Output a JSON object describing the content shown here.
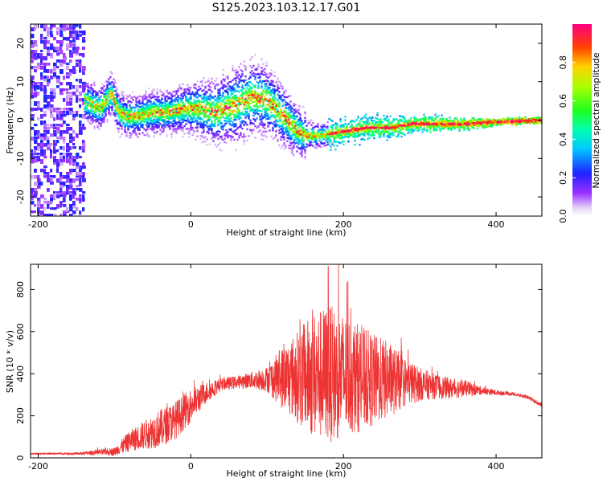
{
  "title": "S125.2023.103.12.17.G01",
  "chart_data": [
    {
      "type": "heatmap",
      "xlabel": "Height of straight line (km)",
      "ylabel": "Frequency (Hz)",
      "xlim": [
        -210,
        460
      ],
      "ylim": [
        -25,
        25
      ],
      "xticks": [
        -200,
        0,
        200,
        400
      ],
      "yticks": [
        -20,
        -10,
        0,
        10,
        20
      ],
      "colorbar": {
        "label": "Normalized spectral amplitude",
        "range": [
          0,
          1
        ],
        "ticks": [
          0.0,
          0.2,
          0.4,
          0.6,
          0.8
        ],
        "colormap": "rainbow (violet-blue-cyan-green-yellow-red-magenta)"
      },
      "ridge": {
        "x": [
          -140,
          -120,
          -105,
          -95,
          -85,
          -70,
          -50,
          -30,
          -10,
          10,
          30,
          60,
          80,
          100,
          120,
          140,
          150,
          170,
          200,
          230,
          260,
          290,
          320,
          360,
          400,
          460
        ],
        "y": [
          5,
          3,
          7,
          2,
          1,
          1,
          2,
          2,
          3,
          3,
          2,
          4,
          6,
          5,
          1,
          -3,
          -4,
          -4,
          -3,
          -2,
          -2,
          -1,
          -1,
          -1,
          -0.5,
          0
        ]
      },
      "noise_region": [
        -210,
        -140
      ]
    },
    {
      "type": "line",
      "xlabel": "Height of straight line (km)",
      "ylabel": "SNR (10 * v/v)",
      "xlim": [
        -210,
        460
      ],
      "ylim": [
        0,
        920
      ],
      "xticks": [
        -200,
        0,
        200,
        400
      ],
      "yticks": [
        0,
        200,
        400,
        600,
        800
      ],
      "series_color": "#ee3333",
      "envelope": {
        "x": [
          -210,
          -150,
          -100,
          -80,
          -60,
          -40,
          -20,
          0,
          20,
          40,
          60,
          80,
          100,
          120,
          140,
          160,
          180,
          200,
          220,
          240,
          260,
          280,
          300,
          320,
          340,
          360,
          380,
          400,
          420,
          440,
          460
        ],
        "mean": [
          20,
          20,
          30,
          80,
          110,
          140,
          180,
          250,
          310,
          350,
          360,
          370,
          375,
          380,
          385,
          390,
          400,
          390,
          380,
          370,
          370,
          360,
          350,
          340,
          330,
          330,
          320,
          310,
          305,
          290,
          250
        ],
        "amplitude": [
          3,
          5,
          20,
          50,
          70,
          90,
          90,
          80,
          50,
          30,
          30,
          40,
          60,
          150,
          220,
          300,
          330,
          300,
          260,
          220,
          180,
          120,
          80,
          60,
          50,
          40,
          20,
          12,
          8,
          8,
          10
        ]
      },
      "peak": {
        "x": 180,
        "y": 910
      }
    }
  ]
}
